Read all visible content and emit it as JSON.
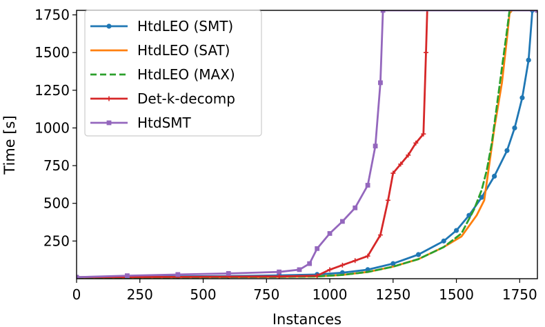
{
  "chart_data": {
    "type": "line",
    "title": "",
    "xlabel": "Instances",
    "ylabel": "Time [s]",
    "xlim": [
      0,
      1820
    ],
    "ylim": [
      0,
      1780
    ],
    "xticks": [
      0,
      250,
      500,
      750,
      1000,
      1250,
      1500,
      1750
    ],
    "yticks": [
      250,
      500,
      750,
      1000,
      1250,
      1500,
      1750
    ],
    "legend_position": "top-left",
    "series": [
      {
        "name": "HtdLEO (SMT)",
        "color": "#1f77b4",
        "style": "solid",
        "marker": "circle",
        "x": [
          0,
          200,
          400,
          600,
          800,
          950,
          1050,
          1150,
          1250,
          1350,
          1450,
          1500,
          1550,
          1600,
          1650,
          1700,
          1730,
          1760,
          1785,
          1800
        ],
        "y": [
          10,
          12,
          15,
          18,
          22,
          28,
          40,
          60,
          100,
          160,
          250,
          320,
          420,
          540,
          680,
          850,
          1000,
          1200,
          1450,
          1780
        ]
      },
      {
        "name": "HtdLEO (SAT)",
        "color": "#ff7f0e",
        "style": "solid",
        "marker": "none",
        "x": [
          0,
          500,
          800,
          950,
          1050,
          1150,
          1250,
          1350,
          1450,
          1520,
          1580,
          1610,
          1630,
          1650,
          1680,
          1700,
          1710,
          1720
        ],
        "y": [
          8,
          10,
          12,
          15,
          25,
          45,
          80,
          130,
          210,
          280,
          420,
          520,
          760,
          1000,
          1300,
          1600,
          1760,
          1780
        ]
      },
      {
        "name": "HtdLEO (MAX)",
        "color": "#2ca02c",
        "style": "dashed",
        "marker": "none",
        "x": [
          0,
          500,
          800,
          950,
          1050,
          1150,
          1250,
          1350,
          1450,
          1520,
          1570,
          1600,
          1620,
          1640,
          1660,
          1680,
          1700,
          1710
        ],
        "y": [
          8,
          10,
          12,
          15,
          25,
          45,
          80,
          130,
          210,
          300,
          460,
          590,
          720,
          900,
          1150,
          1400,
          1650,
          1780
        ]
      },
      {
        "name": "Det-k-decomp",
        "color": "#d62728",
        "style": "solid",
        "marker": "plus",
        "x": [
          0,
          400,
          800,
          950,
          1000,
          1050,
          1100,
          1150,
          1200,
          1230,
          1250,
          1280,
          1310,
          1340,
          1370,
          1380,
          1385
        ],
        "y": [
          10,
          12,
          15,
          20,
          60,
          90,
          120,
          150,
          290,
          520,
          700,
          760,
          820,
          900,
          960,
          1500,
          1780
        ]
      },
      {
        "name": "HtdSMT",
        "color": "#9467bd",
        "style": "solid",
        "marker": "square",
        "x": [
          0,
          200,
          400,
          600,
          800,
          880,
          920,
          950,
          1000,
          1050,
          1100,
          1150,
          1180,
          1200,
          1210,
          1820
        ],
        "y": [
          10,
          20,
          28,
          35,
          45,
          60,
          100,
          200,
          300,
          380,
          470,
          620,
          880,
          1300,
          1780,
          1780
        ]
      }
    ]
  }
}
